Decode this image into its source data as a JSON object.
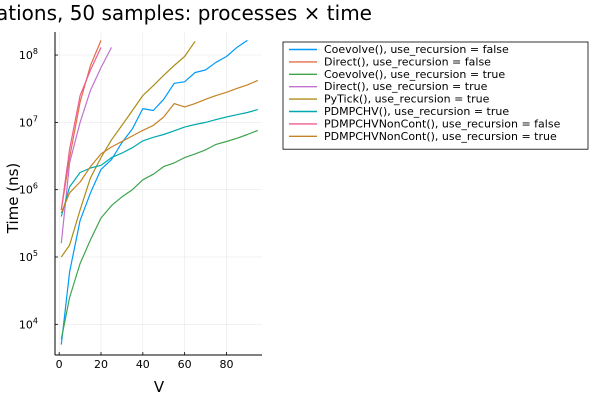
{
  "chart_data": {
    "type": "line",
    "title": "ations, 50 samples: processes × time",
    "xlabel": "V",
    "ylabel": "Time (ns)",
    "xlim": [
      -2,
      97
    ],
    "ylim": [
      3500,
      220000000
    ],
    "yscale": "log",
    "grid": true,
    "legend_position": "outside-right",
    "x_ticks": [
      {
        "value": 0,
        "label": "0"
      },
      {
        "value": 20,
        "label": "20"
      },
      {
        "value": 40,
        "label": "40"
      },
      {
        "value": 60,
        "label": "60"
      },
      {
        "value": 80,
        "label": "80"
      }
    ],
    "y_ticks": [
      {
        "value": 10000,
        "base": "10",
        "exp": "4"
      },
      {
        "value": 100000,
        "base": "10",
        "exp": "5"
      },
      {
        "value": 1000000,
        "base": "10",
        "exp": "6"
      },
      {
        "value": 10000000,
        "base": "10",
        "exp": "7"
      },
      {
        "value": 100000000,
        "base": "10",
        "exp": "8"
      }
    ],
    "series": [
      {
        "name": "Coevolve(), use_recursion = false",
        "color": "#009af9",
        "x": [
          1,
          5,
          10,
          15,
          20,
          25,
          30,
          35,
          40,
          45,
          50,
          55,
          60,
          65,
          70,
          75,
          80,
          85,
          90
        ],
        "y": [
          5000,
          60000,
          350000,
          900000,
          2000000,
          2800000,
          5000000,
          8000000,
          16000000,
          15000000,
          22000000,
          38000000,
          40000000,
          55000000,
          60000000,
          78000000,
          95000000,
          130000000,
          165000000
        ]
      },
      {
        "name": "Direct(), use_recursion = false",
        "color": "#e26f46",
        "x": [
          1,
          5,
          10,
          15,
          20
        ],
        "y": [
          500000,
          3000000,
          20000000,
          70000000,
          165000000
        ]
      },
      {
        "name": "Coevolve(), use_recursion = true",
        "color": "#3da44d",
        "x": [
          1,
          5,
          10,
          15,
          20,
          25,
          30,
          35,
          40,
          45,
          50,
          55,
          60,
          65,
          70,
          75,
          80,
          85,
          90,
          95
        ],
        "y": [
          6000,
          25000,
          80000,
          180000,
          380000,
          580000,
          780000,
          1000000,
          1400000,
          1700000,
          2200000,
          2500000,
          3000000,
          3400000,
          3900000,
          4700000,
          5200000,
          5800000,
          6600000,
          7600000
        ]
      },
      {
        "name": "Direct(), use_recursion = true",
        "color": "#c271d2",
        "x": [
          1,
          5,
          10,
          15,
          20,
          25
        ],
        "y": [
          160000,
          2500000,
          10000000,
          30000000,
          65000000,
          130000000
        ]
      },
      {
        "name": "PyTick(), use_recursion = true",
        "color": "#ac8d18",
        "x": [
          1,
          5,
          10,
          15,
          20,
          25,
          30,
          35,
          40,
          45,
          50,
          55,
          60,
          65
        ],
        "y": [
          100000,
          150000,
          500000,
          1500000,
          3000000,
          5500000,
          9000000,
          15000000,
          25000000,
          35000000,
          50000000,
          70000000,
          95000000,
          160000000
        ]
      },
      {
        "name": "PDMPCHV(), use_recursion = true",
        "color": "#00a9ad",
        "x": [
          1,
          5,
          10,
          15,
          20,
          25,
          30,
          35,
          40,
          45,
          50,
          55,
          60,
          65,
          70,
          75,
          80,
          85,
          90,
          95
        ],
        "y": [
          400000,
          1100000,
          1800000,
          2100000,
          2300000,
          3000000,
          3500000,
          4200000,
          5300000,
          6000000,
          6600000,
          7500000,
          8500000,
          9300000,
          10000000,
          11000000,
          12000000,
          13000000,
          14000000,
          15500000
        ]
      },
      {
        "name": "PDMPCHVNonCont(), use_recursion = false",
        "color": "#ed5d92",
        "x": [
          1,
          5,
          10,
          15,
          20
        ],
        "y": [
          500000,
          4000000,
          25000000,
          60000000,
          130000000
        ]
      },
      {
        "name": "PDMPCHVNonCont(), use_recursion = true",
        "color": "#c68125",
        "x": [
          1,
          5,
          10,
          15,
          20,
          25,
          30,
          35,
          40,
          45,
          50,
          55,
          60,
          65,
          70,
          75,
          80,
          85,
          90,
          95
        ],
        "y": [
          450000,
          900000,
          1300000,
          2200000,
          3400000,
          4300000,
          5200000,
          6300000,
          7600000,
          9000000,
          12000000,
          19000000,
          17000000,
          19000000,
          22000000,
          25000000,
          28000000,
          32000000,
          36000000,
          42000000
        ]
      }
    ]
  }
}
